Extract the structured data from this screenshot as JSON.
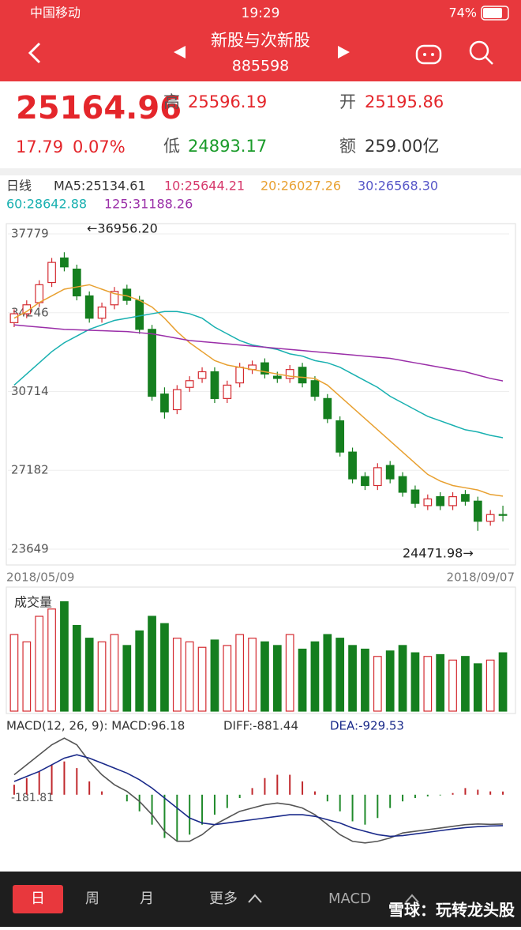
{
  "status": {
    "carrier": "中国移动",
    "time": "19:29",
    "battery": "74%"
  },
  "header": {
    "title": "新股与次新股",
    "code": "885598"
  },
  "quote": {
    "price": "25164.96",
    "change": "17.79",
    "change_pct": "0.07%",
    "high_label": "高",
    "high": "25596.19",
    "open_label": "开",
    "open": "25195.86",
    "low_label": "低",
    "low": "24893.17",
    "amount_label": "额",
    "amount": "259.00亿"
  },
  "ma_legend": [
    {
      "text": "日线",
      "color": "#333333"
    },
    {
      "text": "MA5:25134.61",
      "color": "#333333"
    },
    {
      "text": "10:25644.21",
      "color": "#d6386b"
    },
    {
      "text": "20:26027.26",
      "color": "#e8a030"
    },
    {
      "text": "30:26568.30",
      "color": "#5656c8"
    },
    {
      "text": "60:28642.88",
      "color": "#18b0b0"
    },
    {
      "text": "125:31188.26",
      "color": "#9a2ea8"
    }
  ],
  "chart_data": [
    {
      "type": "candlestick",
      "start_date": "2018/05/09",
      "end_date": "2018/09/07",
      "ylim": [
        23649,
        37779
      ],
      "yticks": [
        23649,
        27182,
        30714,
        34246,
        37779
      ],
      "up_color": "#d42a30",
      "down_color": "#157f1f",
      "annotations": [
        "←36956.20",
        "24471.98→"
      ],
      "open": [
        33800,
        34200,
        34700,
        35600,
        36700,
        36200,
        35000,
        34000,
        34600,
        35300,
        34800,
        33500,
        30600,
        29900,
        30900,
        31300,
        31600,
        30400,
        31100,
        31700,
        32000,
        31400,
        31300,
        31800,
        31200,
        30400,
        29400,
        28000,
        26900,
        26500,
        27400,
        26900,
        26300,
        25600,
        26000,
        25600,
        26100,
        25800,
        24900,
        25200
      ],
      "close": [
        34200,
        34600,
        35500,
        36500,
        36300,
        35000,
        34000,
        34500,
        35200,
        34800,
        33500,
        30500,
        29800,
        30800,
        31200,
        31600,
        30400,
        31000,
        31800,
        31900,
        31500,
        31300,
        31700,
        31100,
        30500,
        29500,
        28000,
        26800,
        26500,
        27300,
        26800,
        26200,
        25700,
        25900,
        25600,
        26000,
        25800,
        24900,
        25200,
        25165
      ],
      "high": [
        34400,
        34800,
        35700,
        36700,
        36956.2,
        36400,
        35200,
        34700,
        35400,
        35500,
        35000,
        33700,
        30900,
        31000,
        31400,
        31800,
        31800,
        31200,
        32000,
        32100,
        32200,
        31600,
        31900,
        32000,
        31400,
        30600,
        29600,
        28200,
        27100,
        27500,
        27600,
        27100,
        26500,
        26100,
        26200,
        26200,
        26300,
        26000,
        25400,
        25596.19
      ],
      "low": [
        33600,
        34000,
        34500,
        35400,
        36100,
        34800,
        33800,
        33800,
        34400,
        34600,
        33300,
        30300,
        29500,
        29700,
        30700,
        31100,
        30200,
        30200,
        30900,
        31500,
        31300,
        31100,
        31100,
        30900,
        30300,
        29300,
        27800,
        26600,
        26300,
        26300,
        26600,
        26000,
        25500,
        25400,
        25400,
        25400,
        25600,
        24471.98,
        24700,
        24893.17
      ],
      "ma_lines": [
        {
          "color": "#e8a030",
          "values": [
            34000,
            34300,
            34700,
            35000,
            35300,
            35400,
            35500,
            35300,
            35100,
            35000,
            34800,
            34500,
            34000,
            33400,
            32900,
            32500,
            32100,
            31900,
            31800,
            31700,
            31600,
            31500,
            31400,
            31350,
            31300,
            31000,
            30500,
            30000,
            29500,
            29000,
            28500,
            28000,
            27500,
            27000,
            26700,
            26500,
            26400,
            26300,
            26100,
            26027.26
          ]
        },
        {
          "color": "#18b0b0",
          "values": [
            31000,
            31500,
            32000,
            32500,
            32900,
            33200,
            33500,
            33700,
            33900,
            34000,
            34100,
            34200,
            34300,
            34300,
            34200,
            34000,
            33600,
            33300,
            33000,
            32800,
            32700,
            32600,
            32400,
            32300,
            32100,
            32000,
            31800,
            31500,
            31200,
            30900,
            30500,
            30200,
            29900,
            29600,
            29400,
            29200,
            29000,
            28900,
            28750,
            28642.88
          ]
        },
        {
          "color": "#9a2ea8",
          "values": [
            33700,
            33650,
            33600,
            33550,
            33500,
            33480,
            33460,
            33440,
            33420,
            33400,
            33350,
            33300,
            33200,
            33100,
            33000,
            32950,
            32900,
            32850,
            32800,
            32750,
            32700,
            32650,
            32600,
            32550,
            32500,
            32450,
            32400,
            32350,
            32300,
            32250,
            32200,
            32100,
            32000,
            31900,
            31800,
            31700,
            31600,
            31450,
            31300,
            31188.26
          ]
        }
      ]
    },
    {
      "type": "bar",
      "title": "成交量",
      "ylim": [
        0,
        650
      ],
      "values": [
        420,
        380,
        520,
        560,
        600,
        470,
        400,
        380,
        420,
        360,
        440,
        520,
        480,
        400,
        380,
        350,
        390,
        360,
        420,
        400,
        380,
        360,
        420,
        340,
        380,
        420,
        400,
        360,
        340,
        300,
        330,
        360,
        320,
        300,
        310,
        280,
        300,
        260,
        280,
        320
      ]
    },
    {
      "type": "macd",
      "label": "MACD(12, 26, 9): MACD:96.18",
      "diff_label": "DIFF:-881.44",
      "dea_label": "DEA:-929.53",
      "axis_label": "-181.81",
      "ylim": [
        -2000,
        1800
      ],
      "up_color": "#c0282d",
      "down_color": "#1f8a2a",
      "hist": [
        300,
        500,
        700,
        900,
        1000,
        800,
        400,
        100,
        0,
        -200,
        -500,
        -900,
        -1300,
        -1400,
        -1200,
        -900,
        -600,
        -400,
        -100,
        200,
        500,
        600,
        600,
        400,
        100,
        -200,
        -500,
        -800,
        -900,
        -700,
        -400,
        -200,
        -100,
        -50,
        -20,
        50,
        200,
        150,
        100,
        96.18
      ],
      "diff": {
        "color": "#555555",
        "values": [
          600,
          900,
          1200,
          1500,
          1700,
          1500,
          1000,
          600,
          300,
          100,
          -200,
          -600,
          -1100,
          -1400,
          -1400,
          -1200,
          -900,
          -700,
          -500,
          -400,
          -300,
          -250,
          -300,
          -400,
          -600,
          -900,
          -1200,
          -1400,
          -1450,
          -1400,
          -1300,
          -1150,
          -1100,
          -1050,
          -1000,
          -950,
          -900,
          -880,
          -890,
          -881.44
        ]
      },
      "dea": {
        "color": "#1a2a8a",
        "values": [
          400,
          550,
          700,
          900,
          1100,
          1200,
          1100,
          950,
          800,
          650,
          450,
          200,
          -100,
          -400,
          -700,
          -850,
          -900,
          -850,
          -800,
          -750,
          -700,
          -650,
          -600,
          -600,
          -650,
          -750,
          -850,
          -1000,
          -1100,
          -1200,
          -1250,
          -1230,
          -1180,
          -1130,
          -1080,
          -1030,
          -990,
          -960,
          -940,
          -929.53
        ]
      }
    }
  ],
  "tabs": [
    "日",
    "周",
    "月",
    "更多",
    "MACD"
  ],
  "watermark": "雪球：玩转龙头股"
}
